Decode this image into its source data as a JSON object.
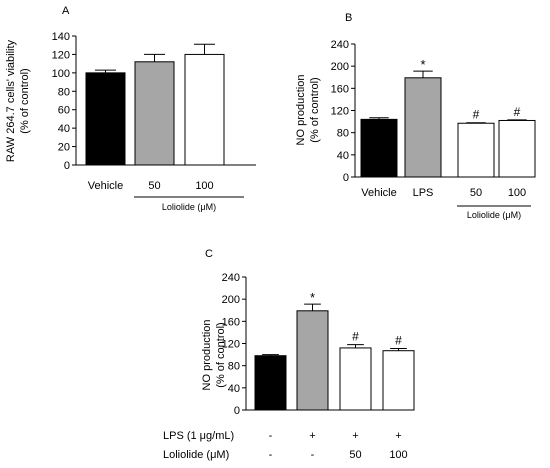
{
  "chart_data": [
    {
      "panel_label": "A",
      "type": "bar",
      "categories": [
        "Vehicle",
        "50",
        "100"
      ],
      "values": [
        100,
        112,
        120
      ],
      "errors": [
        3,
        8,
        11
      ],
      "fills": [
        "#000000",
        "#a6a6a6",
        "#ffffff"
      ],
      "significance": [
        "",
        "",
        ""
      ],
      "ylabel_lines": [
        "RAW 264.7 cells' viability",
        "(% of control)"
      ],
      "ylim": [
        0,
        140
      ],
      "yticks": [
        0,
        20,
        40,
        60,
        80,
        100,
        120,
        140
      ],
      "bracket_label": "Loliolide (μM)",
      "grid": false
    },
    {
      "panel_label": "B",
      "type": "bar",
      "categories": [
        "Vehicle",
        "LPS",
        "50",
        "100"
      ],
      "values": [
        104,
        179,
        97,
        102
      ],
      "errors": [
        3,
        12,
        1,
        1
      ],
      "fills": [
        "#000000",
        "#a6a6a6",
        "#ffffff",
        "#ffffff"
      ],
      "significance": [
        "",
        "*",
        "#",
        "#"
      ],
      "ylabel_lines": [
        "NO production",
        "(% of control)"
      ],
      "ylim": [
        0,
        240
      ],
      "yticks": [
        0,
        40,
        80,
        120,
        160,
        200,
        240
      ],
      "bracket_label": "Loliolide (μM)",
      "grid": false
    },
    {
      "panel_label": "C",
      "type": "bar",
      "categories": [
        "",
        "",
        "",
        ""
      ],
      "values": [
        98,
        179,
        112,
        107
      ],
      "errors": [
        2,
        12,
        6,
        4
      ],
      "fills": [
        "#000000",
        "#a6a6a6",
        "#ffffff",
        "#ffffff"
      ],
      "significance": [
        "",
        "*",
        "#",
        "#"
      ],
      "ylabel_lines": [
        "NO production",
        "(% of control)"
      ],
      "ylim": [
        0,
        240
      ],
      "yticks": [
        0,
        40,
        80,
        120,
        160,
        200,
        240
      ],
      "condition_rows": [
        {
          "label": "LPS (1 μg/mL)",
          "values": [
            "-",
            "+",
            "+",
            "+"
          ]
        },
        {
          "label": "Loliolide (μM)",
          "values": [
            "-",
            "-",
            "50",
            "100"
          ]
        }
      ],
      "grid": false
    }
  ]
}
